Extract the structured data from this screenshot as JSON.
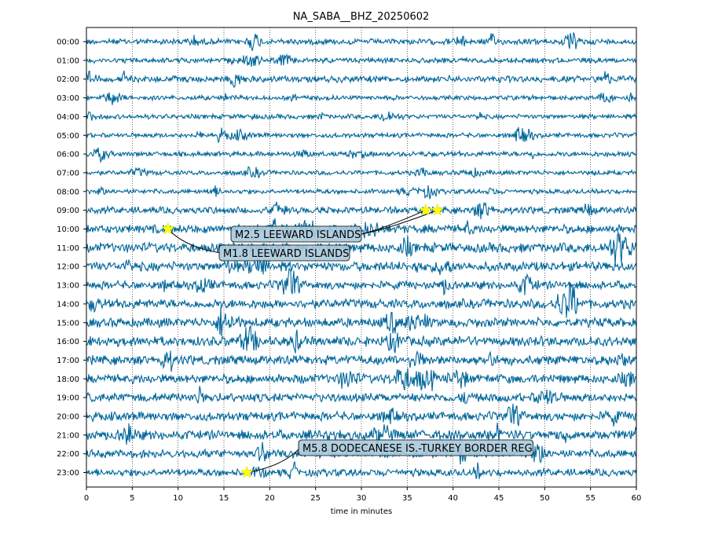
{
  "chart_data": {
    "type": "helicorder",
    "title": "NA_SABA__BHZ_20250602",
    "xlabel": "time in minutes",
    "ylabel": "",
    "xlim": [
      0,
      60
    ],
    "x_ticks": [
      0,
      5,
      10,
      15,
      20,
      25,
      30,
      35,
      40,
      45,
      50,
      55,
      60
    ],
    "grid": "vertical dotted lines at each 5 minutes",
    "trace_color": "#00669a",
    "marker_color": "#ffff00",
    "annotation_box_color": "#a9c9dc",
    "rows": [
      {
        "label": "00:00",
        "amplitude": 0.25
      },
      {
        "label": "01:00",
        "amplitude": 0.22
      },
      {
        "label": "02:00",
        "amplitude": 0.28
      },
      {
        "label": "03:00",
        "amplitude": 0.2
      },
      {
        "label": "04:00",
        "amplitude": 0.2
      },
      {
        "label": "05:00",
        "amplitude": 0.2
      },
      {
        "label": "06:00",
        "amplitude": 0.22
      },
      {
        "label": "07:00",
        "amplitude": 0.2
      },
      {
        "label": "08:00",
        "amplitude": 0.2
      },
      {
        "label": "09:00",
        "amplitude": 0.3
      },
      {
        "label": "10:00",
        "amplitude": 0.38
      },
      {
        "label": "11:00",
        "amplitude": 0.42
      },
      {
        "label": "12:00",
        "amplitude": 0.4
      },
      {
        "label": "13:00",
        "amplitude": 0.35
      },
      {
        "label": "14:00",
        "amplitude": 0.4
      },
      {
        "label": "15:00",
        "amplitude": 0.4
      },
      {
        "label": "16:00",
        "amplitude": 0.42
      },
      {
        "label": "17:00",
        "amplitude": 0.4
      },
      {
        "label": "18:00",
        "amplitude": 0.4
      },
      {
        "label": "19:00",
        "amplitude": 0.38
      },
      {
        "label": "20:00",
        "amplitude": 0.38
      },
      {
        "label": "21:00",
        "amplitude": 0.42
      },
      {
        "label": "22:00",
        "amplitude": 0.35
      },
      {
        "label": "23:00",
        "amplitude": 0.32
      }
    ],
    "events": [
      {
        "row": "09:00",
        "minute": 37.0,
        "label": "M2.5 LEEWARD ISLANDS"
      },
      {
        "row": "09:00",
        "minute": 38.3,
        "label": "M2.5 LEEWARD ISLANDS"
      },
      {
        "row": "10:00",
        "minute": 8.9,
        "label": "M1.8 LEEWARD ISLANDS"
      },
      {
        "row": "23:00",
        "minute": 17.5,
        "label": "M5.8 DODECANESE IS.-TURKEY BORDER REG"
      }
    ]
  }
}
